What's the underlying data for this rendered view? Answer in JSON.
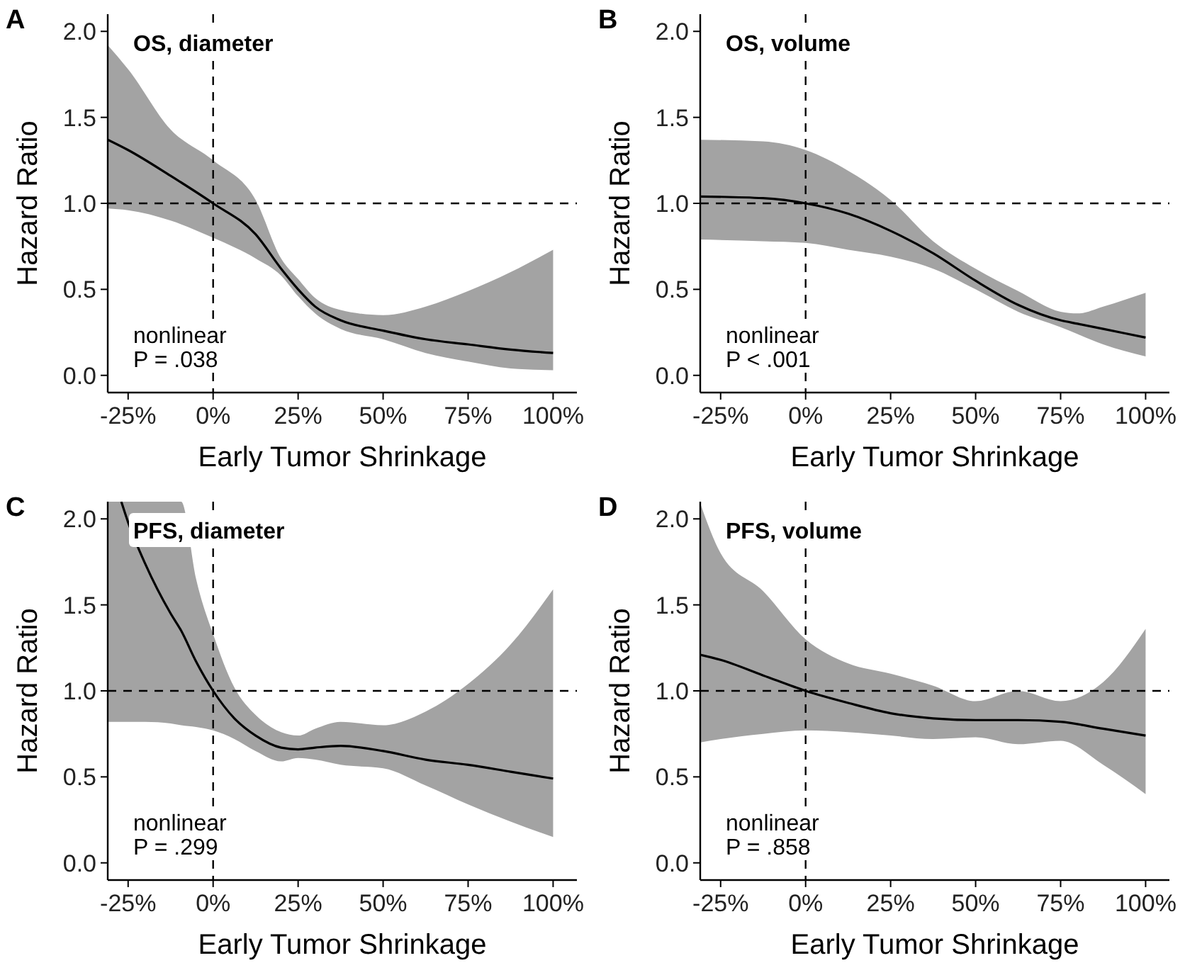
{
  "chart_data": [
    {
      "type": "line",
      "title": "A",
      "subtitle": "OS, diameter",
      "xlabel": "Early Tumor Shrinkage",
      "ylabel": "Hazard Ratio",
      "annotations": [
        "nonlinear\nP = .038"
      ],
      "xlim": [
        -31,
        107
      ],
      "ylim": [
        -0.1,
        2.1
      ],
      "xticks": [
        {
          "value": -25,
          "label": "-25%"
        },
        {
          "value": 0,
          "label": "0%"
        },
        {
          "value": 25,
          "label": "25%"
        },
        {
          "value": 50,
          "label": "50%"
        },
        {
          "value": 75,
          "label": "75%"
        },
        {
          "value": 100,
          "label": "100%"
        }
      ],
      "yticks": [
        {
          "value": 0,
          "label": "0.0"
        },
        {
          "value": 0.5,
          "label": "0.5"
        },
        {
          "value": 1,
          "label": "1.0"
        },
        {
          "value": 1.5,
          "label": "1.5"
        },
        {
          "value": 2,
          "label": "2.0"
        }
      ],
      "ref_lines": [
        {
          "axis": "x",
          "value": 0,
          "line_style": "dashed",
          "color": "#000000"
        },
        {
          "axis": "y",
          "value": 1,
          "line_style": "dashed",
          "color": "#000000"
        }
      ],
      "series": [
        {
          "color": "#000000",
          "x": [
            -31,
            -25,
            -12.5,
            0,
            12.5,
            20,
            25,
            30,
            37.5,
            50,
            62.5,
            75,
            87.5,
            100
          ],
          "values": [
            1.37,
            1.31,
            1.16,
            1.0,
            0.82,
            0.62,
            0.5,
            0.4,
            0.32,
            0.26,
            0.21,
            0.18,
            0.15,
            0.13
          ],
          "upper": [
            1.92,
            1.78,
            1.43,
            1.25,
            1.02,
            0.68,
            0.56,
            0.45,
            0.38,
            0.35,
            0.4,
            0.49,
            0.6,
            0.73
          ],
          "lower": [
            0.97,
            0.96,
            0.9,
            0.8,
            0.68,
            0.58,
            0.46,
            0.36,
            0.27,
            0.21,
            0.13,
            0.08,
            0.04,
            0.03
          ]
        }
      ]
    },
    {
      "type": "line",
      "title": "B",
      "subtitle": "OS, volume",
      "xlabel": "Early Tumor Shrinkage",
      "ylabel": "Hazard Ratio",
      "annotations": [
        "nonlinear\nP < .001"
      ],
      "xlim": [
        -31,
        107
      ],
      "ylim": [
        -0.1,
        2.1
      ],
      "xticks": [
        {
          "value": -25,
          "label": "-25%"
        },
        {
          "value": 0,
          "label": "0%"
        },
        {
          "value": 25,
          "label": "25%"
        },
        {
          "value": 50,
          "label": "50%"
        },
        {
          "value": 75,
          "label": "75%"
        },
        {
          "value": 100,
          "label": "100%"
        }
      ],
      "yticks": [
        {
          "value": 0,
          "label": "0.0"
        },
        {
          "value": 0.5,
          "label": "0.5"
        },
        {
          "value": 1,
          "label": "1.0"
        },
        {
          "value": 1.5,
          "label": "1.5"
        },
        {
          "value": 2,
          "label": "2.0"
        }
      ],
      "ref_lines": [
        {
          "axis": "x",
          "value": 0,
          "line_style": "dashed",
          "color": "#000000"
        },
        {
          "axis": "y",
          "value": 1,
          "line_style": "dashed",
          "color": "#000000"
        }
      ],
      "series": [
        {
          "color": "#000000",
          "x": [
            -31,
            -12.5,
            0,
            12.5,
            25,
            37.5,
            50,
            62.5,
            75,
            80,
            87.5,
            100
          ],
          "values": [
            1.04,
            1.03,
            1.0,
            0.94,
            0.84,
            0.71,
            0.55,
            0.41,
            0.32,
            0.3,
            0.27,
            0.22
          ],
          "upper": [
            1.37,
            1.36,
            1.31,
            1.19,
            1.02,
            0.78,
            0.62,
            0.49,
            0.37,
            0.36,
            0.4,
            0.48
          ],
          "lower": [
            0.79,
            0.78,
            0.77,
            0.73,
            0.69,
            0.62,
            0.5,
            0.37,
            0.28,
            0.24,
            0.18,
            0.11
          ]
        }
      ]
    },
    {
      "type": "line",
      "title": "C",
      "subtitle": "PFS, diameter",
      "xlabel": "Early Tumor Shrinkage",
      "ylabel": "Hazard Ratio",
      "annotations": [
        "nonlinear\nP = .299"
      ],
      "xlim": [
        -31,
        107
      ],
      "ylim": [
        -0.1,
        2.1
      ],
      "xticks": [
        {
          "value": -25,
          "label": "-25%"
        },
        {
          "value": 0,
          "label": "0%"
        },
        {
          "value": 25,
          "label": "25%"
        },
        {
          "value": 50,
          "label": "50%"
        },
        {
          "value": 75,
          "label": "75%"
        },
        {
          "value": 100,
          "label": "100%"
        }
      ],
      "yticks": [
        {
          "value": 0,
          "label": "0.0"
        },
        {
          "value": 0.5,
          "label": "0.5"
        },
        {
          "value": 1,
          "label": "1.0"
        },
        {
          "value": 1.5,
          "label": "1.5"
        },
        {
          "value": 2,
          "label": "2.0"
        }
      ],
      "ref_lines": [
        {
          "axis": "x",
          "value": 0,
          "line_style": "dashed",
          "color": "#000000"
        },
        {
          "axis": "y",
          "value": 1,
          "line_style": "dashed",
          "color": "#000000"
        }
      ],
      "series": [
        {
          "color": "#000000",
          "x": [
            -31,
            -27,
            -25,
            -20,
            -12.5,
            -9.4,
            -5,
            0,
            6.25,
            12.5,
            20,
            25,
            30,
            37.5,
            50,
            62.5,
            75,
            87.5,
            100
          ],
          "values": [
            null,
            2.1,
            1.98,
            1.74,
            1.45,
            1.35,
            1.17,
            1.0,
            0.84,
            0.74,
            0.67,
            0.66,
            0.67,
            0.68,
            0.65,
            0.6,
            0.57,
            0.53,
            0.49
          ],
          "upper": [
            2.1,
            2.1,
            2.1,
            2.1,
            2.1,
            2.1,
            1.65,
            1.33,
            1.02,
            0.86,
            0.76,
            0.74,
            0.78,
            0.82,
            0.8,
            0.88,
            1.04,
            1.27,
            1.59
          ],
          "lower": [
            0.82,
            0.82,
            0.82,
            0.82,
            0.81,
            0.8,
            0.79,
            0.77,
            0.72,
            0.65,
            0.59,
            0.61,
            0.6,
            0.57,
            0.55,
            0.45,
            0.34,
            0.24,
            0.15
          ]
        }
      ]
    },
    {
      "type": "line",
      "title": "D",
      "subtitle": "PFS, volume",
      "xlabel": "Early Tumor Shrinkage",
      "ylabel": "Hazard Ratio",
      "annotations": [
        "nonlinear\nP = .858"
      ],
      "xlim": [
        -31,
        107
      ],
      "ylim": [
        -0.1,
        2.1
      ],
      "xticks": [
        {
          "value": -25,
          "label": "-25%"
        },
        {
          "value": 0,
          "label": "0%"
        },
        {
          "value": 25,
          "label": "25%"
        },
        {
          "value": 50,
          "label": "50%"
        },
        {
          "value": 75,
          "label": "75%"
        },
        {
          "value": 100,
          "label": "100%"
        }
      ],
      "yticks": [
        {
          "value": 0,
          "label": "0.0"
        },
        {
          "value": 0.5,
          "label": "0.5"
        },
        {
          "value": 1,
          "label": "1.0"
        },
        {
          "value": 1.5,
          "label": "1.5"
        },
        {
          "value": 2,
          "label": "2.0"
        }
      ],
      "ref_lines": [
        {
          "axis": "x",
          "value": 0,
          "line_style": "dashed",
          "color": "#000000"
        },
        {
          "axis": "y",
          "value": 1,
          "line_style": "dashed",
          "color": "#000000"
        }
      ],
      "series": [
        {
          "color": "#000000",
          "x": [
            -31,
            -25,
            -12.5,
            0,
            12.5,
            25,
            37.5,
            50,
            62.5,
            75,
            87.5,
            100
          ],
          "values": [
            1.21,
            1.18,
            1.09,
            1.0,
            0.93,
            0.87,
            0.84,
            0.83,
            0.83,
            0.82,
            0.78,
            0.74
          ],
          "upper": [
            2.09,
            1.8,
            1.58,
            1.3,
            1.16,
            1.1,
            1.03,
            0.94,
            1.0,
            0.94,
            1.05,
            1.36
          ],
          "lower": [
            0.7,
            0.72,
            0.75,
            0.77,
            0.76,
            0.74,
            0.72,
            0.73,
            0.69,
            0.71,
            0.57,
            0.4
          ]
        }
      ]
    }
  ]
}
